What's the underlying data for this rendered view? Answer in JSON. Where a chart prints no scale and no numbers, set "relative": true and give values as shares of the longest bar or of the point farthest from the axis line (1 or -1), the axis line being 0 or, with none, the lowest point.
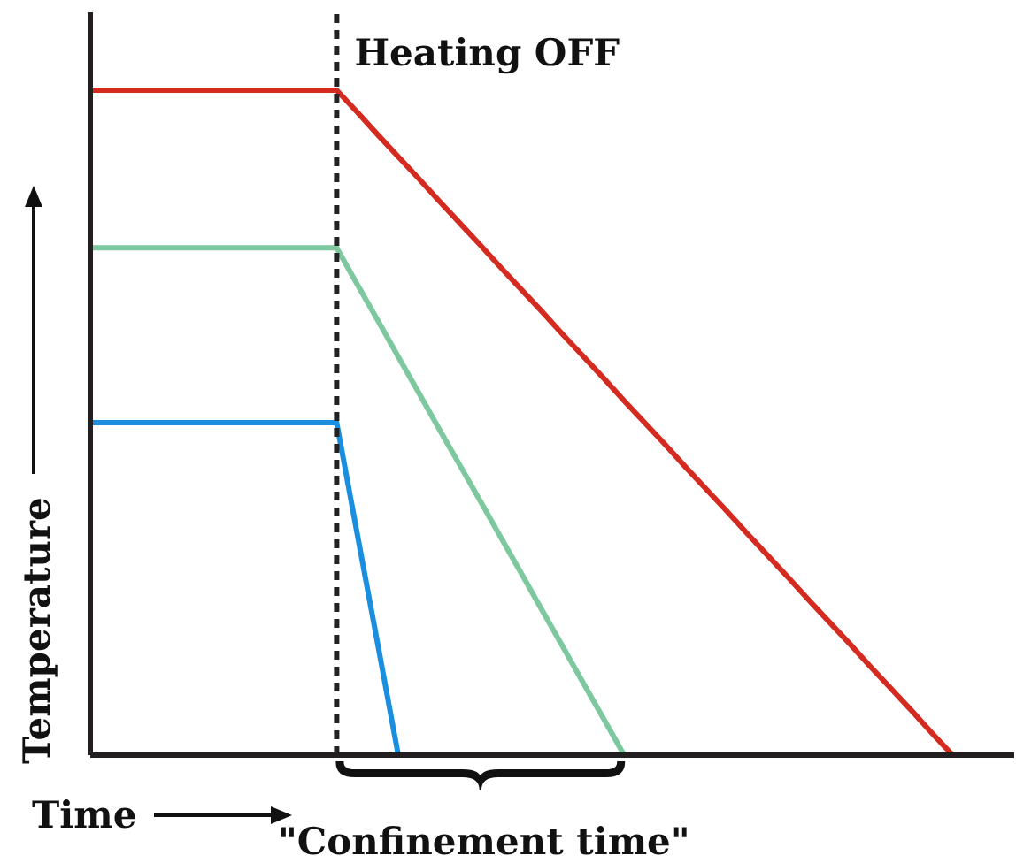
{
  "chart_data": {
    "type": "line",
    "relative": true,
    "xlabel": "Time",
    "ylabel": "Temperature",
    "line_style": "solid",
    "categories": [
      null,
      null,
      null,
      null,
      null,
      null,
      null,
      null,
      null,
      null,
      null,
      null,
      null,
      null,
      null,
      null,
      null,
      null,
      null,
      null,
      null,
      null,
      null,
      null,
      null,
      null,
      null,
      null,
      null,
      null,
      null,
      null,
      null,
      null,
      null,
      null,
      null,
      null,
      null,
      null,
      null,
      null,
      null,
      null,
      null,
      null
    ],
    "series": [
      {
        "color": "#d42a20",
        "values": [
          1,
          1,
          1,
          1,
          1,
          1,
          1,
          1,
          1,
          1,
          1,
          1,
          1,
          0.967,
          0.933,
          0.9,
          0.867,
          0.833,
          0.8,
          0.767,
          0.733,
          0.7,
          0.667,
          0.633,
          0.6,
          0.567,
          0.533,
          0.5,
          0.467,
          0.433,
          0.4,
          0.367,
          0.333,
          0.3,
          0.267,
          0.233,
          0.2,
          0.167,
          0.133,
          0.1,
          0.067,
          0.033,
          0,
          null,
          null,
          null
        ]
      },
      {
        "color": "#7ec8a0",
        "values": [
          0.763,
          0.763,
          0.763,
          0.763,
          0.763,
          0.763,
          0.763,
          0.763,
          0.763,
          0.763,
          0.763,
          0.763,
          0.763,
          0.708,
          0.654,
          0.599,
          0.545,
          0.49,
          0.436,
          0.382,
          0.327,
          0.273,
          0.218,
          0.164,
          0.109,
          0.055,
          0,
          null,
          null,
          null,
          null,
          null,
          null,
          null,
          null,
          null,
          null,
          null,
          null,
          null,
          null,
          null,
          null,
          null,
          null,
          null
        ]
      },
      {
        "color": "#1a8fe0",
        "values": [
          0.5,
          0.5,
          0.5,
          0.5,
          0.5,
          0.5,
          0.5,
          0.5,
          0.5,
          0.5,
          0.5,
          0.5,
          0.5,
          0.333,
          0.167,
          0,
          null,
          null,
          null,
          null,
          null,
          null,
          null,
          null,
          null,
          null,
          null,
          null,
          null,
          null,
          null,
          null,
          null,
          null,
          null,
          null,
          null,
          null,
          null,
          null,
          null,
          null,
          null,
          null,
          null,
          null
        ]
      }
    ],
    "annotations": [
      "Heating OFF",
      "\"Confinement time\""
    ]
  }
}
